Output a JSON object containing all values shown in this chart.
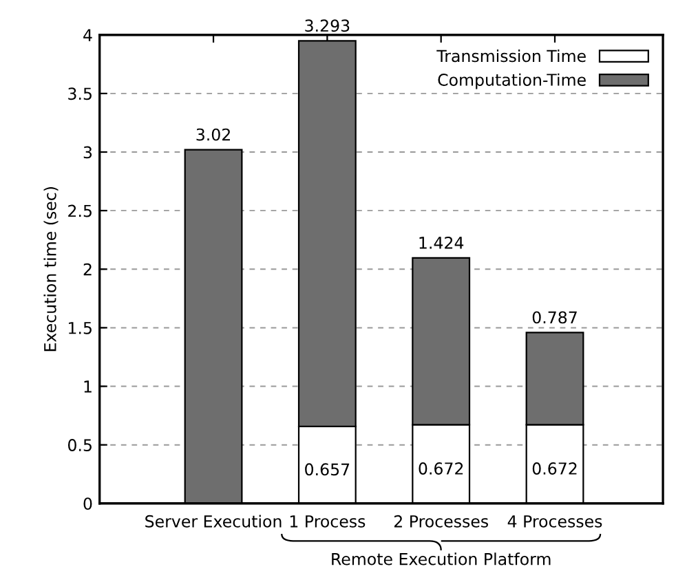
{
  "chart_data": {
    "type": "bar",
    "stacked": true,
    "ylabel": "Execution time (sec)",
    "categories": [
      "Server Execution",
      "1 Process",
      "2 Processes",
      "4 Processes"
    ],
    "series": [
      {
        "name": "Transmission Time",
        "color": "#ffffff",
        "values": [
          null,
          0.657,
          0.672,
          0.672
        ]
      },
      {
        "name": "Computation-Time",
        "color": "#6e6e6e",
        "values": [
          3.02,
          3.293,
          1.424,
          0.787
        ]
      }
    ],
    "ylim": [
      0,
      4
    ],
    "yticks": [
      0,
      0.5,
      1,
      1.5,
      2,
      2.5,
      3,
      3.5,
      4
    ],
    "grid": "y",
    "legend": "top right",
    "data_labels": true,
    "annotations": [
      "Remote Execution Platform"
    ]
  }
}
